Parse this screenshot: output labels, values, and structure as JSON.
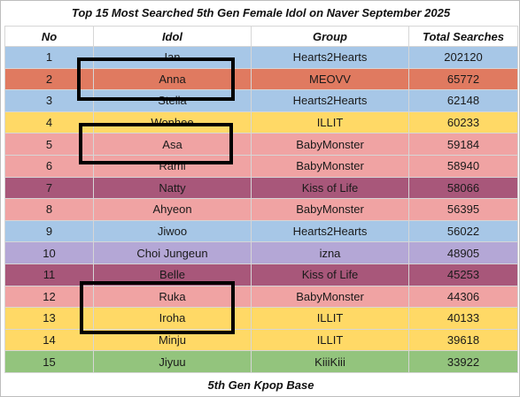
{
  "title": "Top 15 Most Searched 5th Gen Female Idol on Naver September 2025",
  "footer": "5th Gen Kpop Base",
  "headers": {
    "no": "No",
    "idol": "Idol",
    "group": "Group",
    "total": "Total Searches"
  },
  "colors": {
    "Hearts2Hearts": "#a7c7e7",
    "MEOVV": "#e07a60",
    "ILLIT": "#ffd966",
    "BabyMonster": "#f0a3a3",
    "Kiss of Life": "#a8577a",
    "izna": "#b4a7d6",
    "KiiiKiii": "#93c47d"
  },
  "rows": [
    {
      "no": "1",
      "idol": "Ian",
      "group": "Hearts2Hearts",
      "total": "202120"
    },
    {
      "no": "2",
      "idol": "Anna",
      "group": "MEOVV",
      "total": "65772"
    },
    {
      "no": "3",
      "idol": "Stella",
      "group": "Hearts2Hearts",
      "total": "62148"
    },
    {
      "no": "4",
      "idol": "Wonhee",
      "group": "ILLIT",
      "total": "60233"
    },
    {
      "no": "5",
      "idol": "Asa",
      "group": "BabyMonster",
      "total": "59184"
    },
    {
      "no": "6",
      "idol": "Rami",
      "group": "BabyMonster",
      "total": "58940"
    },
    {
      "no": "7",
      "idol": "Natty",
      "group": "Kiss of Life",
      "total": "58066"
    },
    {
      "no": "8",
      "idol": "Ahyeon",
      "group": "BabyMonster",
      "total": "56395"
    },
    {
      "no": "9",
      "idol": "Jiwoo",
      "group": "Hearts2Hearts",
      "total": "56022"
    },
    {
      "no": "10",
      "idol": "Choi Jungeun",
      "group": "izna",
      "total": "48905"
    },
    {
      "no": "11",
      "idol": "Belle",
      "group": "Kiss of Life",
      "total": "45253"
    },
    {
      "no": "12",
      "idol": "Ruka",
      "group": "BabyMonster",
      "total": "44306"
    },
    {
      "no": "13",
      "idol": "Iroha",
      "group": "ILLIT",
      "total": "40133"
    },
    {
      "no": "14",
      "idol": "Minju",
      "group": "ILLIT",
      "total": "39618"
    },
    {
      "no": "15",
      "idol": "Jiyuu",
      "group": "KiiiKiii",
      "total": "33922"
    }
  ],
  "highlighted_idols": [
    "Anna",
    "Asa",
    "Ruka",
    "Iroha"
  ]
}
